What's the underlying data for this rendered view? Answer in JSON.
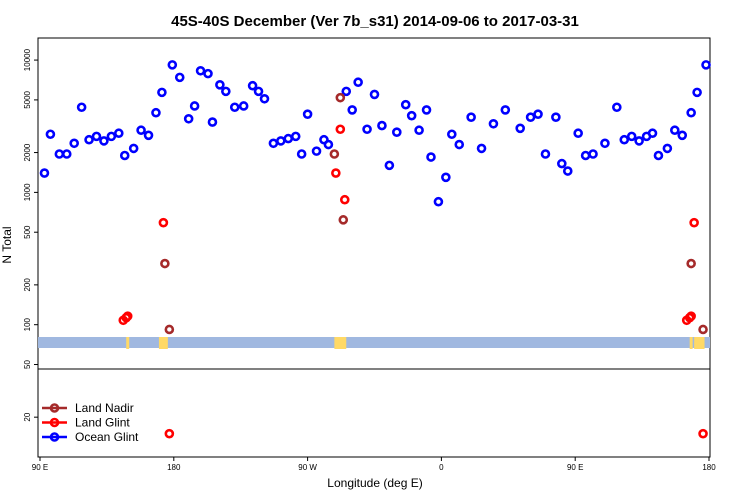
{
  "chart_data": {
    "type": "scatter",
    "title": "45S-40S December (Ver 7b_s31)   2014-09-06 to 2017-03-31",
    "xlabel": "Longitude (deg E)",
    "ylabel": "N Total",
    "x_ticks": [
      {
        "value": 90,
        "label": "90 E"
      },
      {
        "value": 180,
        "label": "180"
      },
      {
        "value": 270,
        "label": "90 W"
      },
      {
        "value": 360,
        "label": "0"
      },
      {
        "value": 450,
        "label": "90 E"
      },
      {
        "value": 540,
        "label": "180"
      }
    ],
    "xlim": [
      90,
      540
    ],
    "y_scale": "log",
    "ylim": [
      10,
      13000
    ],
    "y_ticks": [
      20,
      50,
      100,
      200,
      500,
      1000,
      2000,
      5000,
      10000
    ],
    "legend_position": "bottom-left",
    "colors": {
      "land_nadir": "#a52a2a",
      "land_glint": "#ff0000",
      "ocean_glint": "#0000ff",
      "land_band": "#ffd966",
      "ocean_band": "#a0b8e0"
    },
    "series": [
      {
        "name": "Land Nadir",
        "color": "#a52a2a",
        "points": [
          [
            174,
            290
          ],
          [
            177,
            92
          ],
          [
            288,
            1950
          ],
          [
            292,
            5200
          ],
          [
            294,
            620
          ],
          [
            528,
            290
          ],
          [
            536,
            92
          ]
        ]
      },
      {
        "name": "Land Glint",
        "color": "#ff0000",
        "points": [
          [
            146,
            108
          ],
          [
            148,
            113
          ],
          [
            149,
            116
          ],
          [
            173,
            590
          ],
          [
            177,
            15
          ],
          [
            289,
            1400
          ],
          [
            292,
            3000
          ],
          [
            295,
            880
          ],
          [
            525,
            108
          ],
          [
            527,
            113
          ],
          [
            528,
            116
          ],
          [
            530,
            590
          ],
          [
            536,
            15
          ]
        ]
      },
      {
        "name": "Ocean Glint",
        "color": "#0000ff",
        "points": [
          [
            93,
            1400
          ],
          [
            97,
            2750
          ],
          [
            103,
            1950
          ],
          [
            108,
            1950
          ],
          [
            113,
            2350
          ],
          [
            118,
            4400
          ],
          [
            123,
            2500
          ],
          [
            128,
            2650
          ],
          [
            133,
            2450
          ],
          [
            138,
            2650
          ],
          [
            143,
            2800
          ],
          [
            147,
            1900
          ],
          [
            153,
            2150
          ],
          [
            158,
            2950
          ],
          [
            163,
            2700
          ],
          [
            168,
            4000
          ],
          [
            172,
            5700
          ],
          [
            179,
            9200
          ],
          [
            184,
            7400
          ],
          [
            190,
            3600
          ],
          [
            194,
            4500
          ],
          [
            198,
            8300
          ],
          [
            203,
            7900
          ],
          [
            206,
            3400
          ],
          [
            211,
            6500
          ],
          [
            215,
            5800
          ],
          [
            221,
            4400
          ],
          [
            227,
            4500
          ],
          [
            233,
            6400
          ],
          [
            237,
            5800
          ],
          [
            241,
            5100
          ],
          [
            247,
            2350
          ],
          [
            252,
            2450
          ],
          [
            257,
            2550
          ],
          [
            262,
            2650
          ],
          [
            266,
            1950
          ],
          [
            270,
            3900
          ],
          [
            276,
            2050
          ],
          [
            281,
            2500
          ],
          [
            284,
            2300
          ],
          [
            296,
            5800
          ],
          [
            300,
            4200
          ],
          [
            304,
            6800
          ],
          [
            310,
            3000
          ],
          [
            315,
            5500
          ],
          [
            320,
            3200
          ],
          [
            325,
            1600
          ],
          [
            330,
            2850
          ],
          [
            336,
            4600
          ],
          [
            340,
            3800
          ],
          [
            345,
            2950
          ],
          [
            350,
            4200
          ],
          [
            353,
            1850
          ],
          [
            358,
            850
          ],
          [
            363,
            1300
          ],
          [
            367,
            2750
          ],
          [
            372,
            2300
          ],
          [
            380,
            3700
          ],
          [
            387,
            2150
          ],
          [
            395,
            3300
          ],
          [
            403,
            4200
          ],
          [
            413,
            3050
          ],
          [
            420,
            3700
          ],
          [
            425,
            3900
          ],
          [
            430,
            1950
          ],
          [
            437,
            3700
          ],
          [
            441,
            1650
          ],
          [
            445,
            1450
          ],
          [
            452,
            2800
          ],
          [
            457,
            1900
          ],
          [
            462,
            1950
          ],
          [
            470,
            2350
          ],
          [
            478,
            4400
          ],
          [
            483,
            2500
          ],
          [
            488,
            2650
          ],
          [
            493,
            2450
          ],
          [
            498,
            2650
          ],
          [
            502,
            2800
          ],
          [
            506,
            1900
          ],
          [
            512,
            2150
          ],
          [
            517,
            2950
          ],
          [
            522,
            2700
          ],
          [
            528,
            4000
          ],
          [
            532,
            5700
          ],
          [
            538,
            9200
          ]
        ]
      }
    ]
  }
}
